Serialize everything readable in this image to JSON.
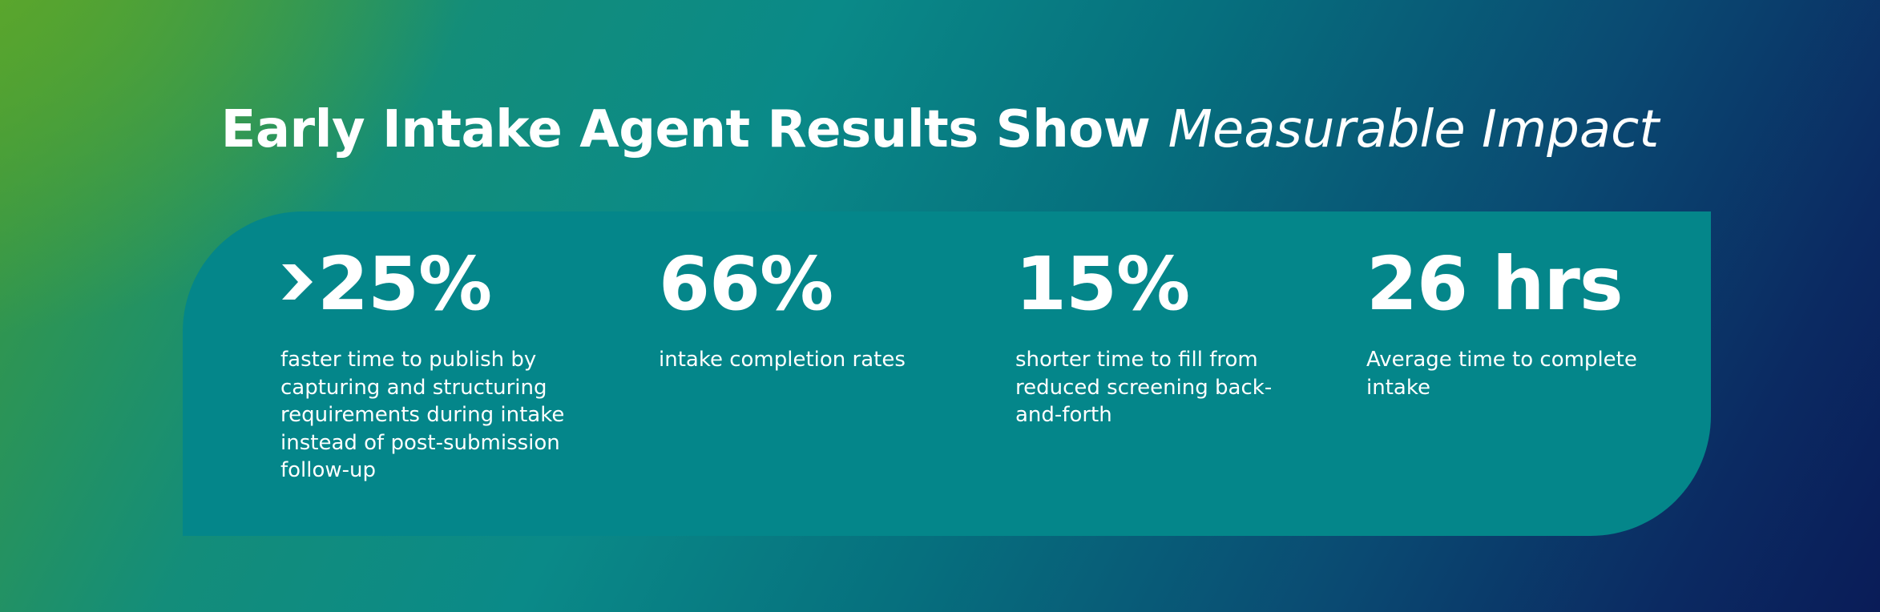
{
  "title": {
    "bold": "Early Intake Agent Results Show",
    "italic": "Measurable Impact"
  },
  "stats": [
    {
      "value": "25%",
      "icon": "chevron-right-icon",
      "description": "faster time to publish by capturing and structuring requirements during intake instead of post-submission follow-up"
    },
    {
      "value": "66%",
      "description": "intake completion rates"
    },
    {
      "value": "15%",
      "description": "shorter time to fill from reduced screening back-and-forth"
    },
    {
      "value": "26 hrs",
      "description": "Average time to complete intake"
    }
  ],
  "colors": {
    "panel": "#04868a",
    "text": "#ffffff",
    "gradient_start": "#5fa82a",
    "gradient_end": "#0a1c58"
  }
}
